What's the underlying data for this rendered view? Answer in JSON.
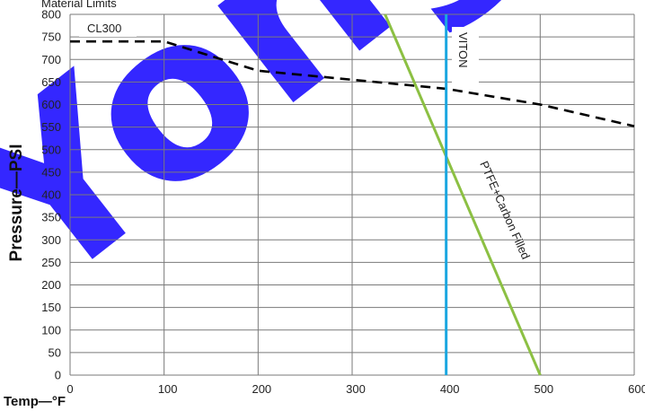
{
  "chart_data": {
    "type": "line",
    "header": "Material Limits",
    "xlabel": "Temp—°F",
    "ylabel": "Pressure—PSI",
    "xlim": [
      0,
      600
    ],
    "ylim": [
      0,
      800
    ],
    "x_ticks": [
      0,
      100,
      200,
      300,
      400,
      500,
      600
    ],
    "y_ticks": [
      0,
      50,
      100,
      150,
      200,
      250,
      300,
      350,
      400,
      450,
      500,
      550,
      600,
      650,
      700,
      750,
      800
    ],
    "grid": true,
    "series": [
      {
        "name": "CL300",
        "style": "dashed",
        "color": "#000000",
        "points": [
          [
            0,
            740
          ],
          [
            100,
            740
          ],
          [
            200,
            675
          ],
          [
            300,
            655
          ],
          [
            400,
            635
          ],
          [
            500,
            600
          ],
          [
            600,
            552
          ]
        ]
      },
      {
        "name": "PTFE+Carbon Filled",
        "style": "solid",
        "color": "#8cc043",
        "points": [
          [
            335,
            800
          ],
          [
            500,
            0
          ]
        ]
      },
      {
        "name": "VITON",
        "style": "solid",
        "color": "#1aa7e0",
        "points": [
          [
            400,
            0
          ],
          [
            400,
            800
          ]
        ]
      }
    ]
  },
  "watermark": "Yong"
}
